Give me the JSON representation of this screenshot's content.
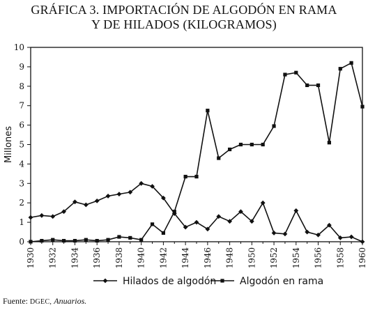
{
  "title_line1": "GRÁFICA 3. IMPORTACIÓN DE ALGODÓN EN RAMA",
  "title_line2": "Y DE HILADOS (KILOGRAMOS)",
  "source_label": "Fuente:",
  "source_org": "DGEC,",
  "source_pub": "Anuarios.",
  "chart_data": {
    "type": "line",
    "ylabel": "Millones",
    "ylim": [
      0,
      10
    ],
    "yticks": [
      0,
      1,
      2,
      3,
      4,
      5,
      6,
      7,
      8,
      9,
      10
    ],
    "xlim": [
      1930,
      1960
    ],
    "xticks": [
      1930,
      1932,
      1934,
      1936,
      1938,
      1940,
      1942,
      1944,
      1946,
      1948,
      1950,
      1952,
      1954,
      1956,
      1958,
      1960
    ],
    "x": [
      1930,
      1931,
      1932,
      1933,
      1934,
      1935,
      1936,
      1937,
      1938,
      1939,
      1940,
      1941,
      1942,
      1943,
      1944,
      1945,
      1946,
      1947,
      1948,
      1949,
      1950,
      1951,
      1952,
      1953,
      1954,
      1955,
      1956,
      1957,
      1958,
      1959,
      1960
    ],
    "legend_position": "bottom",
    "grid": false,
    "series": [
      {
        "name": "Hilados de algodón",
        "marker": "diamond",
        "values": [
          1.25,
          1.35,
          1.3,
          1.55,
          2.05,
          1.9,
          2.1,
          2.35,
          2.45,
          2.55,
          3.0,
          2.85,
          2.25,
          1.45,
          0.75,
          1.0,
          0.65,
          1.3,
          1.05,
          1.55,
          1.05,
          2.0,
          0.45,
          0.4,
          1.6,
          0.5,
          0.35,
          0.85,
          0.2,
          0.25,
          0.0
        ]
      },
      {
        "name": "Algodón en rama",
        "marker": "square",
        "values": [
          0.0,
          0.05,
          0.1,
          0.05,
          0.05,
          0.1,
          0.05,
          0.1,
          0.25,
          0.2,
          0.1,
          0.9,
          0.45,
          1.55,
          3.35,
          3.35,
          6.75,
          4.3,
          4.75,
          5.0,
          5.0,
          5.0,
          5.95,
          8.6,
          8.7,
          8.05,
          8.05,
          5.1,
          8.9,
          9.2,
          6.95
        ]
      }
    ]
  }
}
